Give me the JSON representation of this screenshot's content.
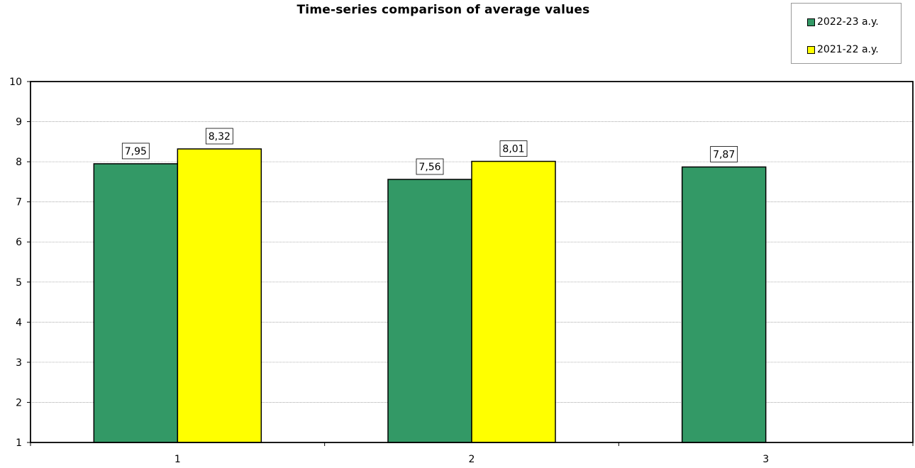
{
  "chart_data": {
    "type": "bar",
    "title": "Time-series comparison of average values",
    "xlabel": "",
    "ylabel": "",
    "categories": [
      "1",
      "2",
      "3"
    ],
    "ylim": [
      1,
      10
    ],
    "yticks": [
      1,
      2,
      3,
      4,
      5,
      6,
      7,
      8,
      9,
      10
    ],
    "grid": true,
    "legend_position": "top-right",
    "series": [
      {
        "name": "2022-23 a.y.",
        "color": "#339966",
        "values": [
          7.95,
          7.56,
          7.87
        ],
        "labels": [
          "7,95",
          "7,56",
          "7,87"
        ]
      },
      {
        "name": "2021-22 a.y.",
        "color": "#ffff00",
        "values": [
          8.32,
          8.01,
          null
        ],
        "labels": [
          "8,32",
          "8,01",
          ""
        ]
      }
    ]
  }
}
